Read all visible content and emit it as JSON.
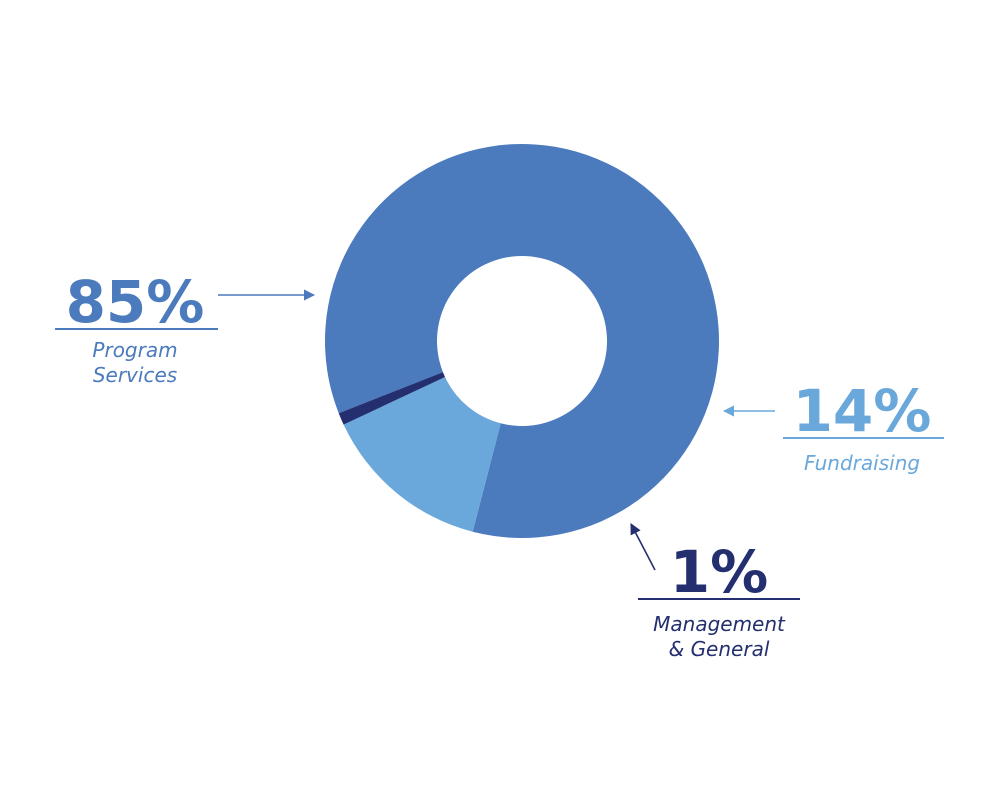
{
  "chart_data": {
    "type": "pie",
    "donut": true,
    "title": "",
    "slices": [
      {
        "label": "Program Services",
        "label_lines": [
          "Program",
          "Services"
        ],
        "value": 85,
        "value_label": "85%",
        "color": "#4b7abd"
      },
      {
        "label": "Fundraising",
        "label_lines": [
          "Fundraising"
        ],
        "value": 14,
        "value_label": "14%",
        "color": "#6aa8dc"
      },
      {
        "label": "Management & General",
        "label_lines": [
          "Management",
          "& General"
        ],
        "value": 1,
        "value_label": "1%",
        "color": "#242f70"
      }
    ],
    "legend": "none"
  }
}
